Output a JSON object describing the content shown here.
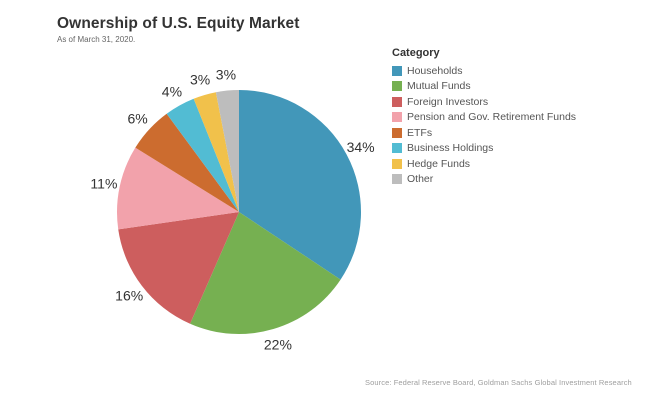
{
  "header": {
    "title": "Ownership of U.S. Equity Market",
    "subtitle": "As of March 31, 2020."
  },
  "legend": {
    "title": "Category"
  },
  "footer": {
    "source": "Source: Federal Reserve Board, Goldman Sachs Global Investment Research"
  },
  "chart_data": {
    "type": "pie",
    "title": "Ownership of U.S. Equity Market",
    "subtitle": "As of March 31, 2020.",
    "legend_title": "Category",
    "legend_position": "right",
    "start_angle_deg": 0,
    "direction": "clockwise",
    "unit": "%",
    "categories": [
      "Households",
      "Mutual Funds",
      "Foreign Investors",
      "Pension and Gov. Retirement Funds",
      "ETFs",
      "Business Holdings",
      "Hedge Funds",
      "Other"
    ],
    "values": [
      34,
      22,
      16,
      11,
      6,
      4,
      3,
      3
    ],
    "labels": [
      "34%",
      "22%",
      "16%",
      "11%",
      "6%",
      "4%",
      "3%",
      "3%"
    ],
    "colors": [
      "#4297B9",
      "#76B051",
      "#CD5E5E",
      "#F2A2AB",
      "#CC6C2F",
      "#52BCD3",
      "#F1C14B",
      "#BDBDBD"
    ],
    "source": "Source: Federal Reserve Board, Goldman Sachs Global Investment Research"
  }
}
